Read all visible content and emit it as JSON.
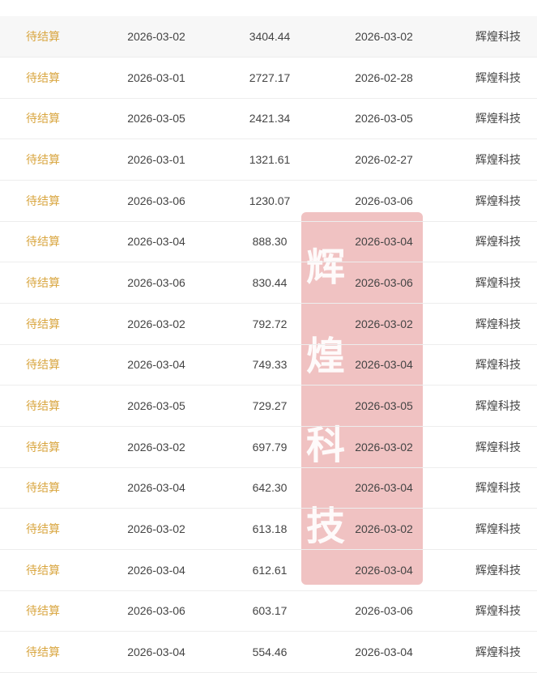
{
  "rows": [
    {
      "status": "待结算",
      "date": "2026-03-02",
      "amount": "3404.44",
      "date2": "2026-03-02",
      "company": "辉煌科技"
    },
    {
      "status": "待结算",
      "date": "2026-03-01",
      "amount": "2727.17",
      "date2": "2026-02-28",
      "company": "辉煌科技"
    },
    {
      "status": "待结算",
      "date": "2026-03-05",
      "amount": "2421.34",
      "date2": "2026-03-05",
      "company": "辉煌科技"
    },
    {
      "status": "待结算",
      "date": "2026-03-01",
      "amount": "1321.61",
      "date2": "2026-02-27",
      "company": "辉煌科技"
    },
    {
      "status": "待结算",
      "date": "2026-03-06",
      "amount": "1230.07",
      "date2": "2026-03-06",
      "company": "辉煌科技"
    },
    {
      "status": "待结算",
      "date": "2026-03-04",
      "amount": "888.30",
      "date2": "2026-03-04",
      "company": "辉煌科技"
    },
    {
      "status": "待结算",
      "date": "2026-03-06",
      "amount": "830.44",
      "date2": "2026-03-06",
      "company": "辉煌科技"
    },
    {
      "status": "待结算",
      "date": "2026-03-02",
      "amount": "792.72",
      "date2": "2026-03-02",
      "company": "辉煌科技"
    },
    {
      "status": "待结算",
      "date": "2026-03-04",
      "amount": "749.33",
      "date2": "2026-03-04",
      "company": "辉煌科技"
    },
    {
      "status": "待结算",
      "date": "2026-03-05",
      "amount": "729.27",
      "date2": "2026-03-05",
      "company": "辉煌科技"
    },
    {
      "status": "待结算",
      "date": "2026-03-02",
      "amount": "697.79",
      "date2": "2026-03-02",
      "company": "辉煌科技"
    },
    {
      "status": "待结算",
      "date": "2026-03-04",
      "amount": "642.30",
      "date2": "2026-03-04",
      "company": "辉煌科技"
    },
    {
      "status": "待结算",
      "date": "2026-03-02",
      "amount": "613.18",
      "date2": "2026-03-02",
      "company": "辉煌科技"
    },
    {
      "status": "待结算",
      "date": "2026-03-04",
      "amount": "612.61",
      "date2": "2026-03-04",
      "company": "辉煌科技"
    },
    {
      "status": "待结算",
      "date": "2026-03-06",
      "amount": "603.17",
      "date2": "2026-03-06",
      "company": "辉煌科技"
    },
    {
      "status": "待结算",
      "date": "2026-03-04",
      "amount": "554.46",
      "date2": "2026-03-04",
      "company": "辉煌科技"
    }
  ],
  "highlighted_row": 0,
  "watermark": "辉煌科技",
  "colors": {
    "status": "#d9a640",
    "watermark": "#de7878"
  }
}
